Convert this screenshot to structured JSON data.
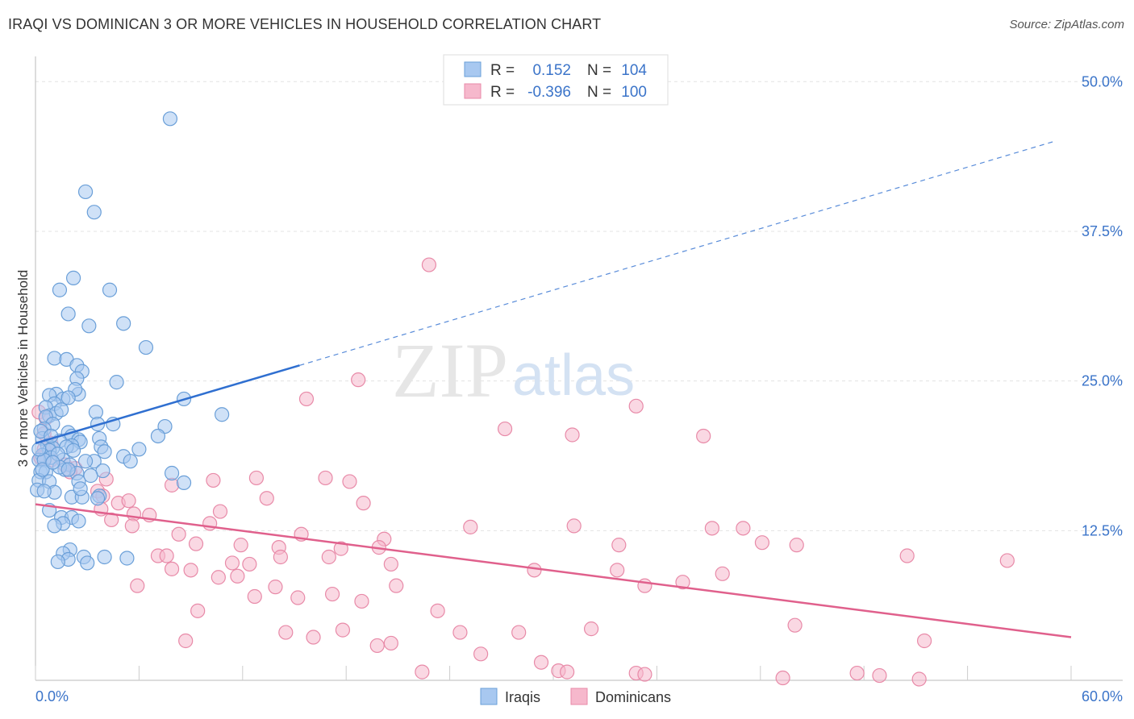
{
  "title": "IRAQI VS DOMINICAN 3 OR MORE VEHICLES IN HOUSEHOLD CORRELATION CHART",
  "source": "Source: ZipAtlas.com",
  "watermark": {
    "zip": "ZIP",
    "atlas": "atlas"
  },
  "colors": {
    "iraqi_fill": "#a8c8f0",
    "iraqi_stroke": "#6a9fd8",
    "iraqi_line": "#2f6fd0",
    "dominican_fill": "#f6b8cc",
    "dominican_stroke": "#e88aa8",
    "dominican_line": "#e0608c",
    "tick_label": "#3b74c9",
    "grid": "#e3e3e3"
  },
  "legend_top": {
    "rows": [
      {
        "r_label": "R =",
        "r_value": "0.152",
        "n_label": "N =",
        "n_value": "104"
      },
      {
        "r_label": "R =",
        "r_value": "-0.396",
        "n_label": "N =",
        "n_value": "100"
      }
    ]
  },
  "legend_bottom": {
    "iraqi": "Iraqis",
    "dominican": "Dominicans"
  },
  "chart_data": {
    "type": "scatter",
    "title": "IRAQI VS DOMINICAN 3 OR MORE VEHICLES IN HOUSEHOLD CORRELATION CHART",
    "xlabel": "",
    "ylabel": "3 or more Vehicles in Household",
    "xlim": [
      0,
      60
    ],
    "ylim": [
      0,
      51.5
    ],
    "x_tick_labels": [
      "0.0%",
      "60.0%"
    ],
    "y_ticks": [
      12.5,
      25.0,
      37.5,
      50.0
    ],
    "y_tick_labels": [
      "12.5%",
      "25.0%",
      "37.5%",
      "50.0%"
    ],
    "grid": true,
    "series": [
      {
        "name": "Iraqis",
        "trend": {
          "x0": 0,
          "y0": 19.8,
          "x1": 15.3,
          "y1": 26.3,
          "x_dash_end": 59.0,
          "y_dash_end": 45.0
        },
        "points": [
          [
            7.8,
            46.9
          ],
          [
            2.9,
            40.8
          ],
          [
            3.4,
            39.1
          ],
          [
            2.2,
            33.6
          ],
          [
            1.4,
            32.6
          ],
          [
            4.3,
            32.6
          ],
          [
            1.9,
            30.6
          ],
          [
            3.1,
            29.6
          ],
          [
            5.1,
            29.8
          ],
          [
            6.4,
            27.8
          ],
          [
            1.1,
            26.9
          ],
          [
            1.8,
            26.8
          ],
          [
            2.4,
            26.3
          ],
          [
            2.7,
            25.8
          ],
          [
            2.4,
            25.2
          ],
          [
            4.7,
            24.9
          ],
          [
            1.2,
            23.9
          ],
          [
            2.5,
            23.9
          ],
          [
            2.3,
            24.3
          ],
          [
            0.8,
            23.8
          ],
          [
            1.6,
            23.5
          ],
          [
            1.9,
            23.6
          ],
          [
            1.1,
            23.1
          ],
          [
            0.6,
            22.8
          ],
          [
            0.8,
            22.1
          ],
          [
            1.2,
            22.3
          ],
          [
            3.5,
            22.4
          ],
          [
            0.6,
            22.0
          ],
          [
            1.0,
            21.4
          ],
          [
            3.6,
            21.4
          ],
          [
            4.5,
            21.4
          ],
          [
            8.6,
            23.5
          ],
          [
            10.8,
            22.2
          ],
          [
            7.5,
            21.2
          ],
          [
            0.5,
            21.0
          ],
          [
            1.9,
            20.7
          ],
          [
            2.1,
            20.4
          ],
          [
            0.4,
            20.2
          ],
          [
            1.4,
            20.0
          ],
          [
            2.5,
            20.1
          ],
          [
            2.6,
            19.9
          ],
          [
            2.1,
            19.6
          ],
          [
            3.7,
            20.2
          ],
          [
            0.7,
            19.6
          ],
          [
            1.0,
            19.4
          ],
          [
            1.8,
            19.5
          ],
          [
            0.8,
            19.2
          ],
          [
            7.1,
            20.4
          ],
          [
            6.0,
            19.3
          ],
          [
            3.8,
            19.5
          ],
          [
            5.1,
            18.7
          ],
          [
            5.5,
            18.3
          ],
          [
            3.4,
            18.3
          ],
          [
            0.4,
            18.8
          ],
          [
            0.9,
            18.6
          ],
          [
            1.6,
            18.4
          ],
          [
            2.0,
            18.0
          ],
          [
            0.2,
            18.4
          ],
          [
            0.5,
            18.4
          ],
          [
            1.7,
            17.6
          ],
          [
            0.3,
            17.4
          ],
          [
            0.6,
            17.4
          ],
          [
            1.4,
            17.8
          ],
          [
            2.4,
            17.3
          ],
          [
            3.9,
            17.5
          ],
          [
            7.9,
            17.3
          ],
          [
            8.6,
            16.5
          ],
          [
            2.5,
            16.6
          ],
          [
            0.2,
            16.7
          ],
          [
            0.8,
            16.6
          ],
          [
            1.1,
            15.7
          ],
          [
            0.1,
            15.9
          ],
          [
            2.1,
            15.3
          ],
          [
            2.7,
            15.3
          ],
          [
            3.7,
            15.4
          ],
          [
            3.6,
            15.2
          ],
          [
            0.8,
            14.2
          ],
          [
            1.5,
            13.6
          ],
          [
            2.1,
            13.6
          ],
          [
            1.6,
            13.1
          ],
          [
            2.5,
            13.3
          ],
          [
            1.1,
            12.9
          ],
          [
            2.0,
            10.9
          ],
          [
            1.6,
            10.6
          ],
          [
            2.8,
            10.3
          ],
          [
            4.0,
            10.3
          ],
          [
            5.3,
            10.2
          ],
          [
            1.9,
            10.1
          ],
          [
            1.3,
            9.9
          ],
          [
            3.0,
            9.8
          ],
          [
            1.9,
            17.6
          ],
          [
            0.3,
            20.8
          ],
          [
            1.3,
            18.9
          ],
          [
            2.2,
            19.2
          ],
          [
            0.5,
            15.8
          ],
          [
            2.9,
            18.3
          ],
          [
            3.2,
            17.1
          ],
          [
            0.9,
            20.4
          ],
          [
            1.5,
            22.6
          ],
          [
            0.4,
            17.6
          ],
          [
            4.0,
            19.1
          ],
          [
            2.6,
            16.0
          ],
          [
            1.0,
            18.2
          ],
          [
            0.2,
            19.3
          ]
        ]
      },
      {
        "name": "Dominicans",
        "trend": {
          "x0": 0,
          "y0": 14.7,
          "x1": 60,
          "y1": 3.6
        },
        "points": [
          [
            22.8,
            34.7
          ],
          [
            18.7,
            25.1
          ],
          [
            15.7,
            23.5
          ],
          [
            34.8,
            22.9
          ],
          [
            27.2,
            21.0
          ],
          [
            31.1,
            20.5
          ],
          [
            38.7,
            20.4
          ],
          [
            0.2,
            22.4
          ],
          [
            0.6,
            21.9
          ],
          [
            0.5,
            20.6
          ],
          [
            0.9,
            19.8
          ],
          [
            0.5,
            19.3
          ],
          [
            0.3,
            18.6
          ],
          [
            0.9,
            18.4
          ],
          [
            1.7,
            18.0
          ],
          [
            2.3,
            17.7
          ],
          [
            2.0,
            17.4
          ],
          [
            4.1,
            16.8
          ],
          [
            7.9,
            16.3
          ],
          [
            10.3,
            16.7
          ],
          [
            12.8,
            16.9
          ],
          [
            16.8,
            16.9
          ],
          [
            18.2,
            16.6
          ],
          [
            3.6,
            15.8
          ],
          [
            3.9,
            15.4
          ],
          [
            4.8,
            14.8
          ],
          [
            5.4,
            15.0
          ],
          [
            13.4,
            15.2
          ],
          [
            19.0,
            14.8
          ],
          [
            3.8,
            14.3
          ],
          [
            5.7,
            13.9
          ],
          [
            6.6,
            13.8
          ],
          [
            10.7,
            14.1
          ],
          [
            4.4,
            13.4
          ],
          [
            10.1,
            13.1
          ],
          [
            5.6,
            12.9
          ],
          [
            15.4,
            12.2
          ],
          [
            20.2,
            11.8
          ],
          [
            25.2,
            12.8
          ],
          [
            31.2,
            12.9
          ],
          [
            39.2,
            12.7
          ],
          [
            41.0,
            12.7
          ],
          [
            8.3,
            12.2
          ],
          [
            9.3,
            11.4
          ],
          [
            11.9,
            11.3
          ],
          [
            14.1,
            11.1
          ],
          [
            17.7,
            11.0
          ],
          [
            19.9,
            11.1
          ],
          [
            33.8,
            11.3
          ],
          [
            42.1,
            11.5
          ],
          [
            44.1,
            11.3
          ],
          [
            7.1,
            10.4
          ],
          [
            7.6,
            10.4
          ],
          [
            14.2,
            10.3
          ],
          [
            17.0,
            10.3
          ],
          [
            11.4,
            9.8
          ],
          [
            12.4,
            9.7
          ],
          [
            20.6,
            9.7
          ],
          [
            7.9,
            9.3
          ],
          [
            9.0,
            9.2
          ],
          [
            28.9,
            9.2
          ],
          [
            33.7,
            9.2
          ],
          [
            10.6,
            8.6
          ],
          [
            11.7,
            8.7
          ],
          [
            50.5,
            10.4
          ],
          [
            56.3,
            10.0
          ],
          [
            39.8,
            8.9
          ],
          [
            37.5,
            8.2
          ],
          [
            5.9,
            7.9
          ],
          [
            13.9,
            7.8
          ],
          [
            20.9,
            7.9
          ],
          [
            35.3,
            7.9
          ],
          [
            12.7,
            7.0
          ],
          [
            15.2,
            6.9
          ],
          [
            17.2,
            7.2
          ],
          [
            18.9,
            6.6
          ],
          [
            9.4,
            5.8
          ],
          [
            23.3,
            5.8
          ],
          [
            14.5,
            4.0
          ],
          [
            16.1,
            3.6
          ],
          [
            17.8,
            4.2
          ],
          [
            24.6,
            4.0
          ],
          [
            28.0,
            4.0
          ],
          [
            32.2,
            4.3
          ],
          [
            44.0,
            4.6
          ],
          [
            8.7,
            3.3
          ],
          [
            19.8,
            2.9
          ],
          [
            20.6,
            3.1
          ],
          [
            25.8,
            2.2
          ],
          [
            29.3,
            1.5
          ],
          [
            30.3,
            0.8
          ],
          [
            30.8,
            0.7
          ],
          [
            34.8,
            0.6
          ],
          [
            35.3,
            0.5
          ],
          [
            22.4,
            0.7
          ],
          [
            51.5,
            3.3
          ],
          [
            43.3,
            0.2
          ],
          [
            47.6,
            0.6
          ],
          [
            48.9,
            0.4
          ],
          [
            51.2,
            0.1
          ]
        ]
      }
    ]
  }
}
